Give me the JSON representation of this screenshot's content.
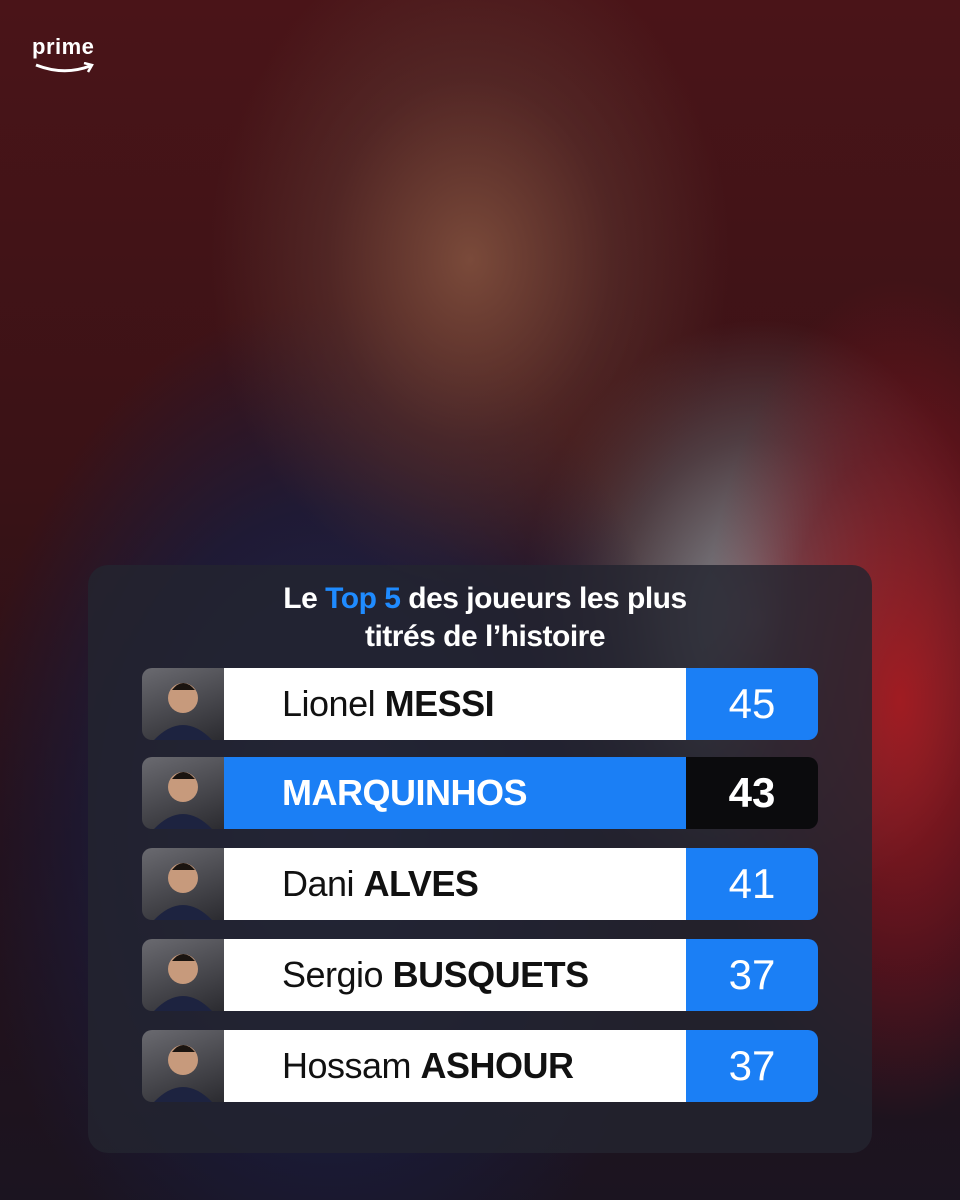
{
  "brand": "prime",
  "title": {
    "before": "Le",
    "highlight": "Top 5",
    "after": "des joueurs les plus titrés de l’histoire"
  },
  "rows": [
    {
      "first_name": "Lionel",
      "last_name": "MESSI",
      "value": 45
    },
    {
      "last_name": "MARQUINHOS",
      "value": 43,
      "highlight": true
    },
    {
      "first_name": "Dani",
      "last_name": "ALVES",
      "value": 41
    },
    {
      "first_name": "Sergio",
      "last_name": "BUSQUETS",
      "value": 37
    },
    {
      "first_name": "Hossam",
      "last_name": "ASHOUR",
      "value": 37
    }
  ]
}
